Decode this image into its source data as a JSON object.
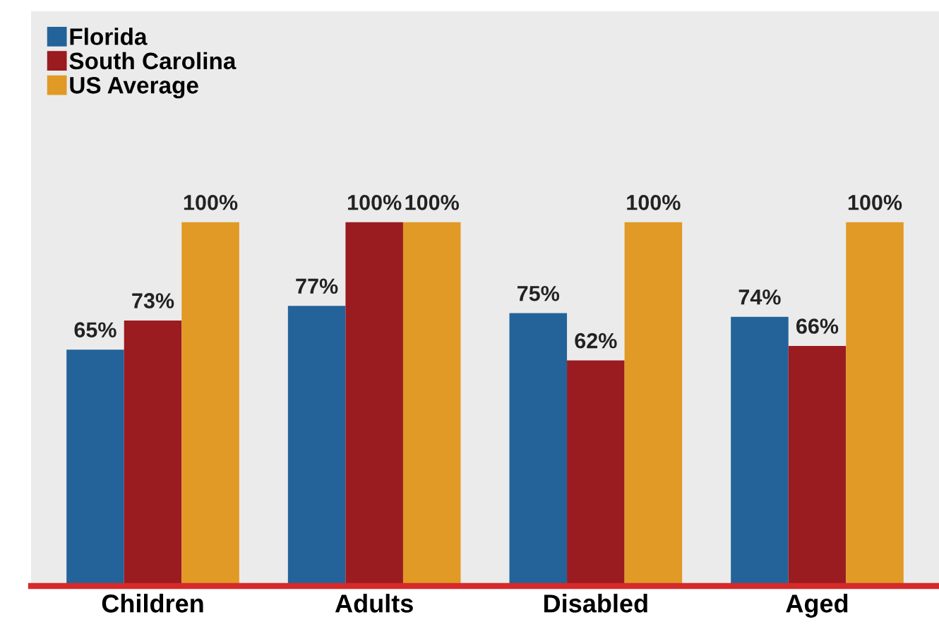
{
  "chart_data": {
    "type": "bar",
    "categories": [
      "Children",
      "Adults",
      "Disabled",
      "Aged"
    ],
    "series": [
      {
        "name": "Florida",
        "color": "#23639a",
        "values": [
          65,
          77,
          75,
          74
        ],
        "value_labels": [
          "65%",
          "77%",
          "75%",
          "74%"
        ]
      },
      {
        "name": "South Carolina",
        "color": "#9a1b20",
        "values": [
          73,
          100,
          62,
          66
        ],
        "value_labels": [
          "73%",
          "100%",
          "62%",
          "66%"
        ]
      },
      {
        "name": "US Average",
        "color": "#e09a25",
        "values": [
          100,
          100,
          100,
          100
        ],
        "value_labels": [
          "100%",
          "100%",
          "100%",
          "100%"
        ]
      }
    ],
    "legend": "top left",
    "grid": false
  }
}
